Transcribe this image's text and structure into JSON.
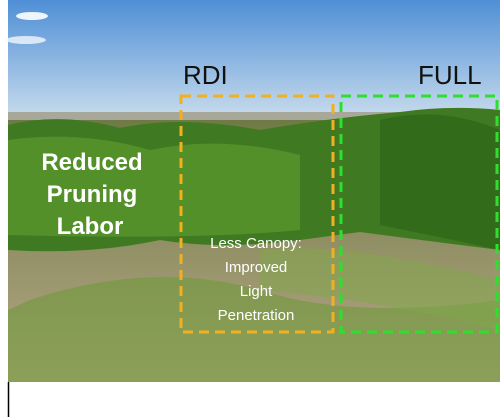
{
  "labels": {
    "rdi": "RDI",
    "full": "FULL",
    "left_note": [
      "Reduced",
      "Pruning",
      "Labor"
    ],
    "center_note": [
      "Less Canopy:",
      "Improved",
      "Light",
      "Penetration"
    ]
  }
}
